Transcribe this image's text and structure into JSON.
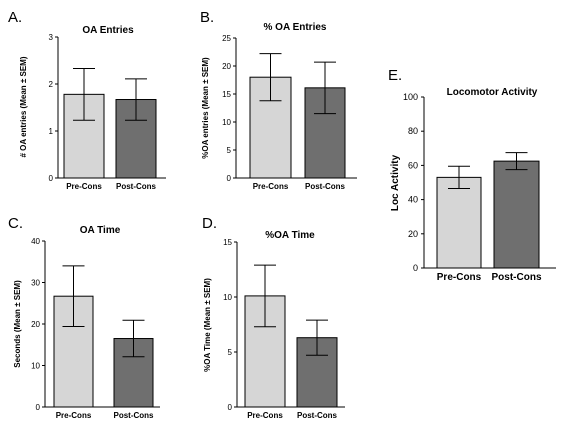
{
  "chart_data": [
    {
      "panel": "A.",
      "type": "bar",
      "title": "OA Entries",
      "ylabel": "# OA entries (Mean ± SEM)",
      "ylim": [
        0,
        3
      ],
      "yticks": [
        0,
        1,
        2,
        3
      ],
      "categories": [
        "Pre-Cons",
        "Post-Cons"
      ],
      "values": [
        1.78,
        1.67
      ],
      "errors": [
        0.55,
        0.44
      ],
      "colors": [
        "#d6d6d6",
        "#6f6f6f"
      ]
    },
    {
      "panel": "B.",
      "type": "bar",
      "title": "% OA Entries",
      "ylabel": "%OA entries (Mean ± SEM)",
      "ylim": [
        0,
        25
      ],
      "yticks": [
        0,
        5,
        10,
        15,
        20,
        25
      ],
      "categories": [
        "Pre-Cons",
        "Post-Cons"
      ],
      "values": [
        18.0,
        16.1
      ],
      "errors": [
        4.2,
        4.6
      ],
      "colors": [
        "#d6d6d6",
        "#6f6f6f"
      ]
    },
    {
      "panel": "C.",
      "type": "bar",
      "title": "OA Time",
      "ylabel": "Seconds (Mean ± SEM)",
      "ylim": [
        0,
        40
      ],
      "yticks": [
        0,
        10,
        20,
        30,
        40
      ],
      "categories": [
        "Pre-Cons",
        "Post-Cons"
      ],
      "values": [
        26.7,
        16.5
      ],
      "errors": [
        7.3,
        4.4
      ],
      "colors": [
        "#d6d6d6",
        "#6f6f6f"
      ]
    },
    {
      "panel": "D.",
      "type": "bar",
      "title": "%OA Time",
      "ylabel": "%OA Time (Mean ± SEM)",
      "ylim": [
        0,
        15
      ],
      "yticks": [
        0,
        5,
        10,
        15
      ],
      "categories": [
        "Pre-Cons",
        "Post-Cons"
      ],
      "values": [
        10.1,
        6.3
      ],
      "errors": [
        2.8,
        1.6
      ],
      "colors": [
        "#d6d6d6",
        "#6f6f6f"
      ]
    },
    {
      "panel": "E.",
      "type": "bar",
      "title": "Locomotor Activity",
      "ylabel": "Loc Activity",
      "ylim": [
        0,
        100
      ],
      "yticks": [
        0,
        20,
        40,
        60,
        80,
        100
      ],
      "categories": [
        "Pre-Cons",
        "Post-Cons"
      ],
      "values": [
        53,
        62.5
      ],
      "errors": [
        6.5,
        5
      ],
      "colors": [
        "#d6d6d6",
        "#6f6f6f"
      ]
    }
  ]
}
